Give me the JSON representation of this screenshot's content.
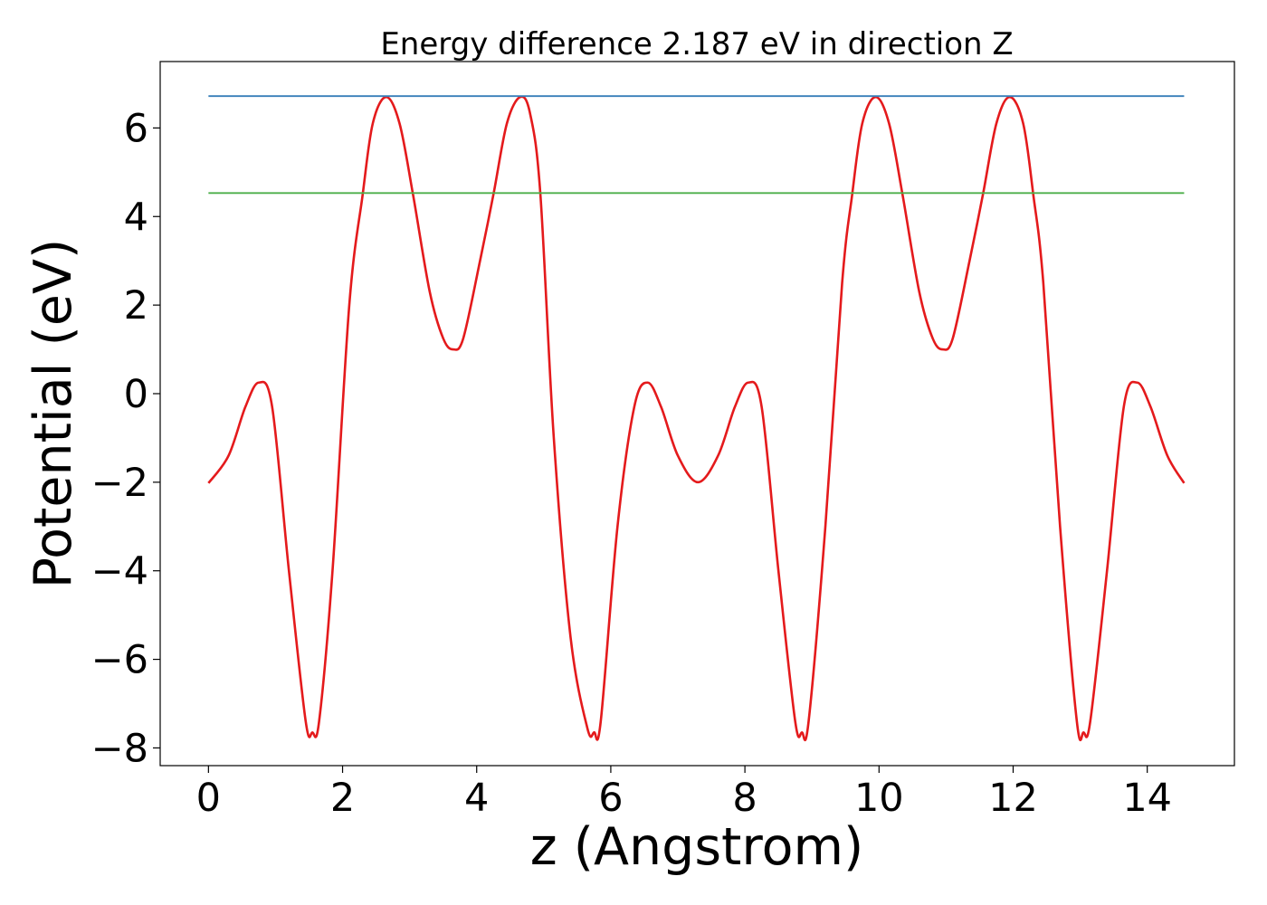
{
  "chart_data": {
    "type": "line",
    "title": "Energy difference 2.187 eV in direction Z",
    "xlabel": "z (Angstrom)",
    "ylabel": "Potential (eV)",
    "xlim": [
      -0.72,
      15.3
    ],
    "ylim": [
      -8.4,
      7.5
    ],
    "xticks": [
      0,
      2,
      4,
      6,
      8,
      10,
      12,
      14
    ],
    "yticks": [
      -8,
      -6,
      -4,
      -2,
      0,
      2,
      4,
      6
    ],
    "xtick_labels": [
      "0",
      "2",
      "4",
      "6",
      "8",
      "10",
      "12",
      "14"
    ],
    "ytick_labels": [
      "−8",
      "−6",
      "−4",
      "−2",
      "0",
      "2",
      "4",
      "6"
    ],
    "grid": false,
    "legend": null,
    "series": [
      {
        "color": "#e41a1c",
        "x": [
          0,
          0.3,
          0.55,
          0.75,
          0.95,
          1.2,
          1.45,
          1.55,
          1.65,
          1.85,
          2.1,
          2.3,
          2.45,
          2.65,
          2.85,
          3.05,
          3.3,
          3.5,
          3.65,
          3.8,
          4.05,
          4.25,
          4.45,
          4.65,
          4.8,
          4.95,
          5.15,
          5.4,
          5.65,
          5.75,
          5.85,
          6.1,
          6.35,
          6.55,
          6.75,
          7.0,
          7.3,
          7.6,
          7.85,
          8.05,
          8.25,
          8.5,
          8.75,
          8.85,
          8.95,
          9.2,
          9.45,
          9.6,
          9.75,
          9.95,
          10.15,
          10.35,
          10.6,
          10.8,
          10.95,
          11.1,
          11.35,
          11.55,
          11.75,
          11.95,
          12.15,
          12.3,
          12.45,
          12.7,
          12.95,
          13.05,
          13.15,
          13.4,
          13.65,
          13.85,
          14.05,
          14.3,
          14.55
        ],
        "y": [
          -2.02,
          -1.4,
          -0.3,
          0.25,
          -0.3,
          -4.0,
          -7.4,
          -7.65,
          -7.4,
          -4.0,
          2.0,
          4.5,
          6.1,
          6.7,
          6.1,
          4.5,
          2.3,
          1.25,
          1.0,
          1.25,
          3.0,
          4.5,
          6.1,
          6.7,
          6.3,
          4.5,
          -1.0,
          -5.5,
          -7.55,
          -7.65,
          -7.4,
          -3.0,
          -0.3,
          0.25,
          -0.3,
          -1.4,
          -2.0,
          -1.4,
          -0.3,
          0.25,
          -0.3,
          -4.0,
          -7.4,
          -7.65,
          -7.4,
          -3.0,
          2.5,
          4.5,
          6.1,
          6.7,
          6.1,
          4.5,
          2.3,
          1.25,
          1.0,
          1.25,
          3.0,
          4.5,
          6.1,
          6.7,
          6.1,
          4.5,
          2.5,
          -3.0,
          -7.4,
          -7.65,
          -7.4,
          -4.0,
          -0.3,
          0.25,
          -0.3,
          -1.4,
          -2.02
        ]
      },
      {
        "color": "#377eb8",
        "x": [
          0,
          14.55
        ],
        "y": [
          6.72,
          6.72
        ]
      },
      {
        "color": "#4daf4a",
        "x": [
          0,
          14.55
        ],
        "y": [
          4.53,
          4.53
        ]
      }
    ]
  }
}
